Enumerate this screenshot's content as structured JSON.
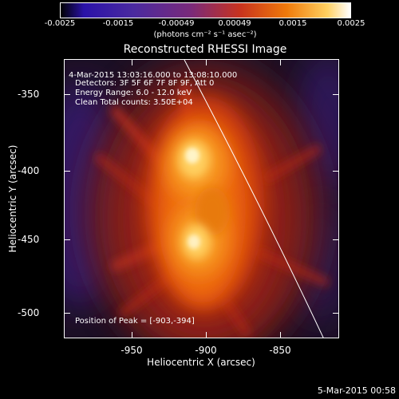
{
  "colorbar": {
    "ticks": [
      "-0.0025",
      "-0.0015",
      "-0.00049",
      "0.00049",
      "0.0015",
      "0.0025"
    ],
    "units": "(photons cm⁻² s⁻¹ asec⁻²)"
  },
  "plot": {
    "title": "Reconstructed RHESSI Image",
    "annotations": {
      "time_range": "4-Mar-2015 13:03:16.000 to 13:08:10.000",
      "detectors": "Detectors: 3F 5F 6F 7F 8F 9F, Att 0",
      "energy": "Energy Range: 6.0 - 12.0 keV",
      "method": "Clean     Total counts: 3.50E+04",
      "peak": "Position of Peak = [-903,-394]"
    },
    "y_axis": {
      "label": "Heliocentric Y (arcsec)",
      "ticks": [
        "-350",
        "-400",
        "-450",
        "-500"
      ]
    },
    "x_axis": {
      "label": "Heliocentric X (arcsec)",
      "ticks": [
        "-950",
        "-900",
        "-850"
      ]
    }
  },
  "footer": {
    "timestamp": "5-Mar-2015 00:58"
  }
}
